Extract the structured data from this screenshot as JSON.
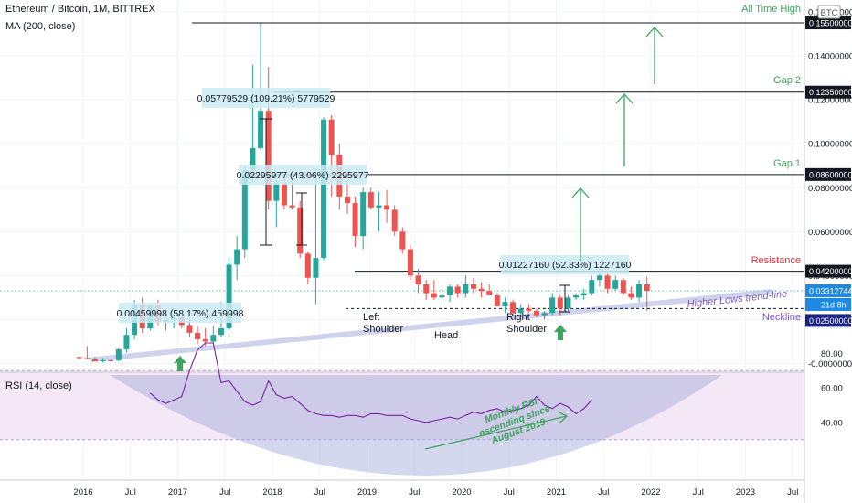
{
  "header": {
    "symbol_line": "Ethereum / Bitcoin, 1M, BITTREX",
    "ma_line": "MA (200, close)",
    "currency_badge": "BTC",
    "rsi_title": "RSI (14, close)"
  },
  "colors": {
    "up": "#26a69a",
    "down": "#ef5350",
    "green_annotation": "#3da55d",
    "resistance": "#e0303a",
    "purple": "#7e57c2",
    "neckline_box": "#1a237e",
    "price_box": "#1e88e5",
    "trend_band": "#c5cae9",
    "rsi_band": "#f3e5f5",
    "rsi_line": "#7b1fa2",
    "measure_box": "#cdebf5"
  },
  "annotations": {
    "all_time_high": "All Time High",
    "gap2": "Gap 2",
    "gap1": "Gap 1",
    "resistance": "Resistance",
    "trendline": "Higher Lows trend-line",
    "neckline": "Neckline",
    "left_shoulder": [
      "Left",
      "Shoulder"
    ],
    "head": "Head",
    "right_shoulder": [
      "Right",
      "Shoulder"
    ],
    "rsi_note": [
      "Monthly RSI",
      "ascending since",
      "August 2019"
    ]
  },
  "measures": [
    {
      "text": "0.00459998 (58.17%) 459998"
    },
    {
      "text": "0.05779529 (109.21%) 5779529"
    },
    {
      "text": "0.02295977 (43.06%) 2295977"
    },
    {
      "text": "0.01227160 (52.83%) 1227160"
    }
  ],
  "price_labels": {
    "ath": "0.15500000",
    "gap2": "0.12350000",
    "gap1": "0.08600000",
    "resistance": "0.04200000",
    "current": "0.03312744",
    "countdown": "21d 8h",
    "neckline": "0.02500000"
  },
  "chart_data": {
    "type": "candlestick",
    "title": "Ethereum / Bitcoin, 1M, BITTREX",
    "price_axis": {
      "ticks": [
        "0.16000000",
        "0.14000000",
        "0.12000000",
        "0.10000000",
        "0.08000000",
        "0.06000000",
        "0.04000000",
        "0.02000000",
        "-0.00000000"
      ],
      "range": [
        -0.002,
        0.16
      ]
    },
    "time_axis": {
      "ticks": [
        "2016",
        "Jul",
        "2017",
        "Jul",
        "2018",
        "Jul",
        "2019",
        "Jul",
        "2020",
        "Jul",
        "2021",
        "Jul",
        "2022",
        "Jul",
        "2023",
        "Jul"
      ]
    },
    "levels": [
      {
        "name": "All Time High",
        "value": 0.155
      },
      {
        "name": "Gap 2",
        "value": 0.1235
      },
      {
        "name": "Gap 1",
        "value": 0.086
      },
      {
        "name": "Resistance",
        "value": 0.042
      },
      {
        "name": "Neckline",
        "value": 0.025
      }
    ],
    "candles": [
      {
        "date": "2015-12",
        "o": 0.003,
        "h": 0.0028,
        "l": 0.002,
        "c": 0.0025
      },
      {
        "date": "2016-01",
        "o": 0.0025,
        "h": 0.008,
        "l": 0.002,
        "c": 0.002
      },
      {
        "date": "2016-02",
        "o": 0.002,
        "h": 0.003,
        "l": 0.001,
        "c": 0.001
      },
      {
        "date": "2016-03",
        "o": 0.001,
        "h": 0.0025,
        "l": 0.0005,
        "c": 0.0015
      },
      {
        "date": "2016-04",
        "o": 0.0015,
        "h": 0.002,
        "l": 0.0008,
        "c": 0.0012
      },
      {
        "date": "2016-05",
        "o": 0.0015,
        "h": 0.007,
        "l": 0.001,
        "c": 0.0065
      },
      {
        "date": "2016-06",
        "o": 0.0065,
        "h": 0.016,
        "l": 0.005,
        "c": 0.013
      },
      {
        "date": "2016-07",
        "o": 0.013,
        "h": 0.029,
        "l": 0.011,
        "c": 0.0265
      },
      {
        "date": "2016-08",
        "o": 0.0265,
        "h": 0.03,
        "l": 0.014,
        "c": 0.016
      },
      {
        "date": "2016-09",
        "o": 0.016,
        "h": 0.027,
        "l": 0.015,
        "c": 0.0265
      },
      {
        "date": "2016-10",
        "o": 0.0265,
        "h": 0.029,
        "l": 0.0175,
        "c": 0.019
      },
      {
        "date": "2016-11",
        "o": 0.019,
        "h": 0.024,
        "l": 0.015,
        "c": 0.02
      },
      {
        "date": "2016-12",
        "o": 0.02,
        "h": 0.022,
        "l": 0.016,
        "c": 0.021
      },
      {
        "date": "2017-01",
        "o": 0.021,
        "h": 0.0215,
        "l": 0.016,
        "c": 0.0175
      },
      {
        "date": "2017-02",
        "o": 0.0175,
        "h": 0.021,
        "l": 0.012,
        "c": 0.014
      },
      {
        "date": "2017-03",
        "o": 0.014,
        "h": 0.017,
        "l": 0.009,
        "c": 0.011
      },
      {
        "date": "2017-04",
        "o": 0.011,
        "h": 0.016,
        "l": 0.008,
        "c": 0.01
      },
      {
        "date": "2017-05",
        "o": 0.01,
        "h": 0.017,
        "l": 0.009,
        "c": 0.013
      },
      {
        "date": "2017-06",
        "o": 0.013,
        "h": 0.028,
        "l": 0.012,
        "c": 0.016
      },
      {
        "date": "2017-07",
        "o": 0.016,
        "h": 0.048,
        "l": 0.015,
        "c": 0.045
      },
      {
        "date": "2017-08",
        "o": 0.045,
        "h": 0.058,
        "l": 0.038,
        "c": 0.052
      },
      {
        "date": "2017-09",
        "o": 0.052,
        "h": 0.09,
        "l": 0.048,
        "c": 0.088
      },
      {
        "date": "2017-10",
        "o": 0.088,
        "h": 0.136,
        "l": 0.082,
        "c": 0.098
      },
      {
        "date": "2017-11",
        "o": 0.098,
        "h": 0.155,
        "l": 0.097,
        "c": 0.115
      },
      {
        "date": "2017-12",
        "o": 0.115,
        "h": 0.135,
        "l": 0.07,
        "c": 0.074
      },
      {
        "date": "2018-01",
        "o": 0.074,
        "h": 0.088,
        "l": 0.062,
        "c": 0.082
      },
      {
        "date": "2018-02",
        "o": 0.082,
        "h": 0.085,
        "l": 0.07,
        "c": 0.072
      },
      {
        "date": "2018-03",
        "o": 0.072,
        "h": 0.085,
        "l": 0.07,
        "c": 0.071
      },
      {
        "date": "2018-04",
        "o": 0.071,
        "h": 0.074,
        "l": 0.048,
        "c": 0.05
      },
      {
        "date": "2018-05",
        "o": 0.05,
        "h": 0.051,
        "l": 0.036,
        "c": 0.039
      },
      {
        "date": "2018-06",
        "o": 0.039,
        "h": 0.089,
        "l": 0.027,
        "c": 0.048
      },
      {
        "date": "2018-07",
        "o": 0.048,
        "h": 0.112,
        "l": 0.047,
        "c": 0.111
      },
      {
        "date": "2018-08",
        "o": 0.111,
        "h": 0.113,
        "l": 0.076,
        "c": 0.095
      },
      {
        "date": "2018-09",
        "o": 0.095,
        "h": 0.1,
        "l": 0.07,
        "c": 0.076
      },
      {
        "date": "2018-10",
        "o": 0.076,
        "h": 0.088,
        "l": 0.068,
        "c": 0.073
      },
      {
        "date": "2018-11",
        "o": 0.073,
        "h": 0.076,
        "l": 0.053,
        "c": 0.058
      },
      {
        "date": "2018-12",
        "o": 0.058,
        "h": 0.08,
        "l": 0.052,
        "c": 0.078
      },
      {
        "date": "2019-01",
        "o": 0.078,
        "h": 0.08,
        "l": 0.07,
        "c": 0.071
      },
      {
        "date": "2019-02",
        "o": 0.071,
        "h": 0.078,
        "l": 0.06,
        "c": 0.072
      },
      {
        "date": "2019-03",
        "o": 0.072,
        "h": 0.079,
        "l": 0.064,
        "c": 0.07
      },
      {
        "date": "2019-04",
        "o": 0.07,
        "h": 0.072,
        "l": 0.058,
        "c": 0.06
      },
      {
        "date": "2019-05",
        "o": 0.06,
        "h": 0.062,
        "l": 0.05,
        "c": 0.052
      },
      {
        "date": "2019-06",
        "o": 0.052,
        "h": 0.054,
        "l": 0.038,
        "c": 0.04
      },
      {
        "date": "2019-07",
        "o": 0.04,
        "h": 0.043,
        "l": 0.032,
        "c": 0.036
      },
      {
        "date": "2019-08",
        "o": 0.036,
        "h": 0.038,
        "l": 0.029,
        "c": 0.032
      },
      {
        "date": "2019-09",
        "o": 0.032,
        "h": 0.038,
        "l": 0.029,
        "c": 0.03
      },
      {
        "date": "2019-10",
        "o": 0.03,
        "h": 0.034,
        "l": 0.028,
        "c": 0.031
      },
      {
        "date": "2019-11",
        "o": 0.031,
        "h": 0.036,
        "l": 0.028,
        "c": 0.035
      },
      {
        "date": "2019-12",
        "o": 0.035,
        "h": 0.036,
        "l": 0.03,
        "c": 0.032
      },
      {
        "date": "2020-01",
        "o": 0.032,
        "h": 0.04,
        "l": 0.03,
        "c": 0.036
      },
      {
        "date": "2020-02",
        "o": 0.036,
        "h": 0.039,
        "l": 0.032,
        "c": 0.034
      },
      {
        "date": "2020-03",
        "o": 0.034,
        "h": 0.037,
        "l": 0.03,
        "c": 0.033
      },
      {
        "date": "2020-04",
        "o": 0.033,
        "h": 0.036,
        "l": 0.032,
        "c": 0.031
      },
      {
        "date": "2020-05",
        "o": 0.031,
        "h": 0.032,
        "l": 0.026,
        "c": 0.026
      },
      {
        "date": "2020-06",
        "o": 0.026,
        "h": 0.03,
        "l": 0.023,
        "c": 0.028
      },
      {
        "date": "2020-07",
        "o": 0.028,
        "h": 0.029,
        "l": 0.022,
        "c": 0.023
      },
      {
        "date": "2020-08",
        "o": 0.023,
        "h": 0.027,
        "l": 0.021,
        "c": 0.025
      },
      {
        "date": "2020-09",
        "o": 0.025,
        "h": 0.027,
        "l": 0.023,
        "c": 0.024
      },
      {
        "date": "2020-10",
        "o": 0.024,
        "h": 0.025,
        "l": 0.021,
        "c": 0.022
      },
      {
        "date": "2020-11",
        "o": 0.022,
        "h": 0.024,
        "l": 0.02,
        "c": 0.023
      },
      {
        "date": "2020-12",
        "o": 0.023,
        "h": 0.032,
        "l": 0.022,
        "c": 0.03
      },
      {
        "date": "2021-01",
        "o": 0.03,
        "h": 0.031,
        "l": 0.022,
        "c": 0.025
      },
      {
        "date": "2021-02",
        "o": 0.025,
        "h": 0.031,
        "l": 0.024,
        "c": 0.03
      },
      {
        "date": "2021-03",
        "o": 0.03,
        "h": 0.032,
        "l": 0.029,
        "c": 0.031
      },
      {
        "date": "2021-04",
        "o": 0.031,
        "h": 0.034,
        "l": 0.029,
        "c": 0.032
      },
      {
        "date": "2021-05",
        "o": 0.032,
        "h": 0.04,
        "l": 0.031,
        "c": 0.038
      },
      {
        "date": "2021-06",
        "o": 0.038,
        "h": 0.044,
        "l": 0.035,
        "c": 0.04
      },
      {
        "date": "2021-07",
        "o": 0.04,
        "h": 0.042,
        "l": 0.032,
        "c": 0.034
      },
      {
        "date": "2021-08",
        "o": 0.034,
        "h": 0.04,
        "l": 0.033,
        "c": 0.038
      },
      {
        "date": "2021-09",
        "o": 0.038,
        "h": 0.039,
        "l": 0.031,
        "c": 0.032
      },
      {
        "date": "2021-10",
        "o": 0.032,
        "h": 0.035,
        "l": 0.029,
        "c": 0.03
      },
      {
        "date": "2021-11",
        "o": 0.03,
        "h": 0.038,
        "l": 0.028,
        "c": 0.036
      },
      {
        "date": "2021-12",
        "o": 0.036,
        "h": 0.0395,
        "l": 0.024,
        "c": 0.0331
      }
    ],
    "rsi": {
      "title": "RSI (14, close)",
      "ticks": [
        "80.00",
        "60.00",
        "40.00"
      ],
      "range": [
        20,
        90
      ],
      "band": [
        30,
        70
      ],
      "values": [
        {
          "date": "2016-09",
          "v": 57
        },
        {
          "date": "2016-10",
          "v": 53
        },
        {
          "date": "2016-11",
          "v": 51
        },
        {
          "date": "2016-12",
          "v": 53
        },
        {
          "date": "2017-01",
          "v": 55
        },
        {
          "date": "2017-02",
          "v": 70
        },
        {
          "date": "2017-03",
          "v": 82
        },
        {
          "date": "2017-04",
          "v": 86
        },
        {
          "date": "2017-05",
          "v": 86
        },
        {
          "date": "2017-06",
          "v": 63
        },
        {
          "date": "2017-07",
          "v": 64
        },
        {
          "date": "2017-08",
          "v": 58
        },
        {
          "date": "2017-09",
          "v": 52
        },
        {
          "date": "2017-10",
          "v": 50
        },
        {
          "date": "2017-11",
          "v": 52
        },
        {
          "date": "2017-12",
          "v": 64
        },
        {
          "date": "2018-01",
          "v": 56
        },
        {
          "date": "2018-02",
          "v": 54
        },
        {
          "date": "2018-03",
          "v": 55
        },
        {
          "date": "2018-04",
          "v": 51
        },
        {
          "date": "2018-05",
          "v": 47
        },
        {
          "date": "2018-06",
          "v": 45
        },
        {
          "date": "2018-07",
          "v": 44
        },
        {
          "date": "2018-08",
          "v": 44
        },
        {
          "date": "2018-09",
          "v": 43
        },
        {
          "date": "2018-10",
          "v": 44
        },
        {
          "date": "2018-11",
          "v": 44
        },
        {
          "date": "2018-12",
          "v": 43
        },
        {
          "date": "2019-01",
          "v": 45
        },
        {
          "date": "2019-02",
          "v": 45
        },
        {
          "date": "2019-03",
          "v": 44
        },
        {
          "date": "2019-04",
          "v": 44
        },
        {
          "date": "2019-05",
          "v": 44
        },
        {
          "date": "2019-06",
          "v": 42
        },
        {
          "date": "2019-07",
          "v": 41
        },
        {
          "date": "2019-08",
          "v": 40
        },
        {
          "date": "2019-09",
          "v": 41
        },
        {
          "date": "2019-10",
          "v": 42
        },
        {
          "date": "2019-11",
          "v": 43
        },
        {
          "date": "2019-12",
          "v": 42
        },
        {
          "date": "2020-01",
          "v": 44
        },
        {
          "date": "2020-02",
          "v": 46
        },
        {
          "date": "2020-03",
          "v": 45
        },
        {
          "date": "2020-04",
          "v": 47
        },
        {
          "date": "2020-05",
          "v": 48
        },
        {
          "date": "2020-06",
          "v": 46
        },
        {
          "date": "2020-07",
          "v": 47
        },
        {
          "date": "2020-08",
          "v": 48
        },
        {
          "date": "2020-09",
          "v": 50
        },
        {
          "date": "2020-10",
          "v": 55
        },
        {
          "date": "2020-11",
          "v": 50
        },
        {
          "date": "2020-12",
          "v": 48
        },
        {
          "date": "2021-01",
          "v": 51
        },
        {
          "date": "2021-02",
          "v": 49
        },
        {
          "date": "2021-03",
          "v": 45
        },
        {
          "date": "2021-04",
          "v": 48
        },
        {
          "date": "2021-05",
          "v": 53
        }
      ]
    }
  }
}
